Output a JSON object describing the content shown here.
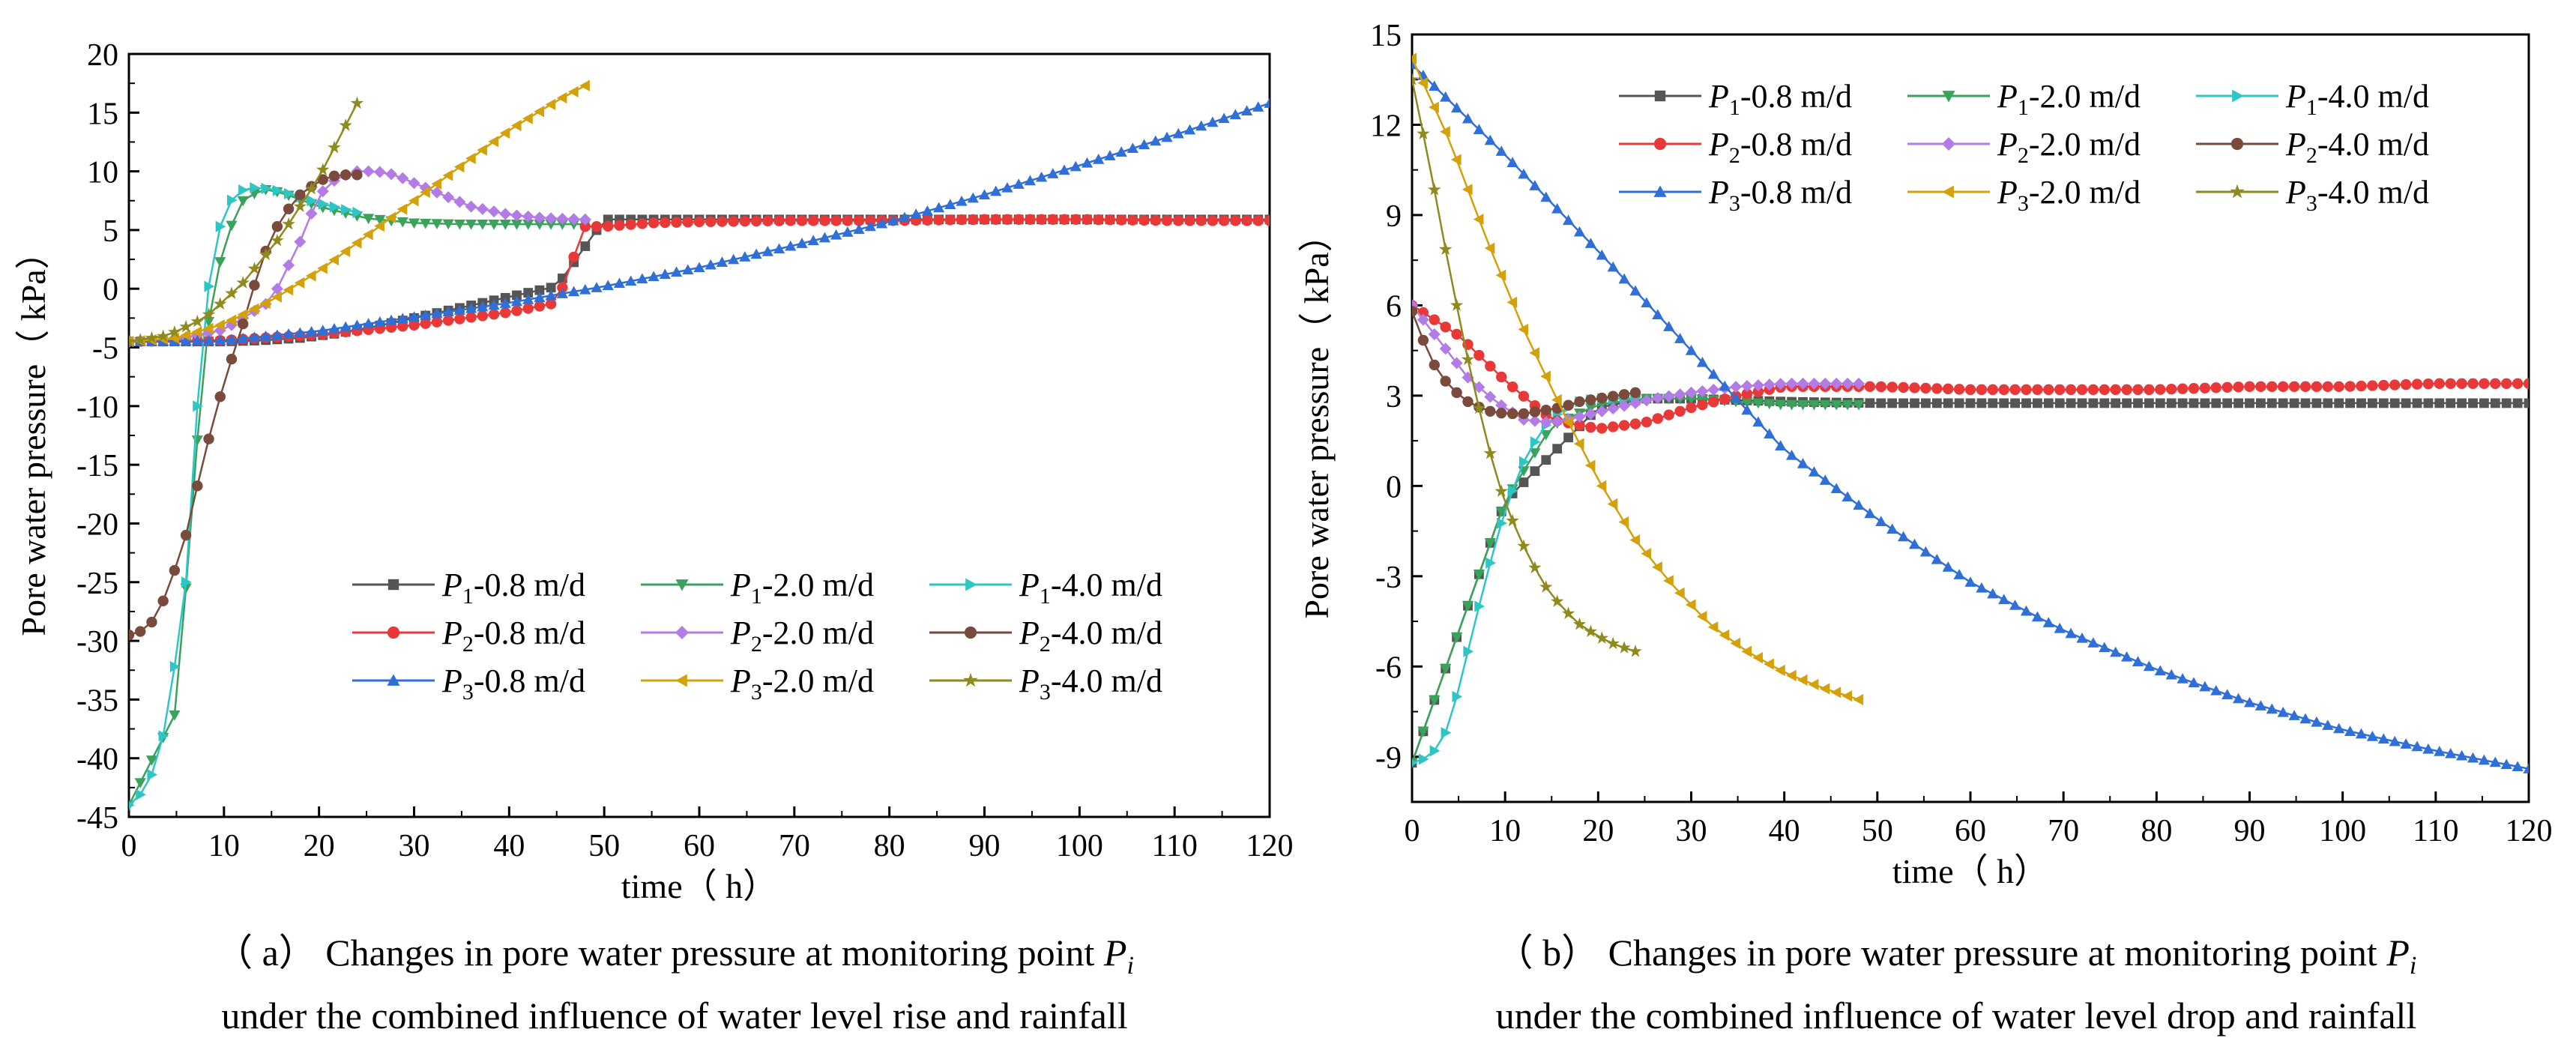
{
  "captions": {
    "a": {
      "prefix": "（ a） Changes in pore water pressure at monitoring point ",
      "symbol": "P",
      "subscript": "i",
      "line2": "under the combined influence of water level rise and rainfall"
    },
    "b": {
      "prefix": "（ b） Changes in pore water pressure at monitoring point ",
      "symbol": "P",
      "subscript": "i",
      "line2": "under the combined influence of water level  drop and rainfall"
    }
  },
  "legend_suffixes": {
    "0.8": "-0.8 m/d",
    "2.0": "-2.0 m/d",
    "4.0": "-4.0 m/d"
  },
  "series_style": [
    {
      "key": "P1-0.8",
      "point": "P",
      "sub": "1",
      "rate": "0.8",
      "color": "#555555",
      "marker": "square"
    },
    {
      "key": "P1-2.0",
      "point": "P",
      "sub": "1",
      "rate": "2.0",
      "color": "#3aa25a",
      "marker": "tri-down"
    },
    {
      "key": "P1-4.0",
      "point": "P",
      "sub": "1",
      "rate": "4.0",
      "color": "#2ec5c5",
      "marker": "tri-right"
    },
    {
      "key": "P2-0.8",
      "point": "P",
      "sub": "2",
      "rate": "0.8",
      "color": "#e83838",
      "marker": "circle"
    },
    {
      "key": "P2-2.0",
      "point": "P",
      "sub": "2",
      "rate": "2.0",
      "color": "#b27be6",
      "marker": "diamond"
    },
    {
      "key": "P2-4.0",
      "point": "P",
      "sub": "2",
      "rate": "4.0",
      "color": "#7a4a3c",
      "marker": "circle"
    },
    {
      "key": "P3-0.8",
      "point": "P",
      "sub": "3",
      "rate": "0.8",
      "color": "#2f6fd6",
      "marker": "tri-up"
    },
    {
      "key": "P3-2.0",
      "point": "P",
      "sub": "3",
      "rate": "2.0",
      "color": "#d4a10a",
      "marker": "tri-left"
    },
    {
      "key": "P3-4.0",
      "point": "P",
      "sub": "3",
      "rate": "4.0",
      "color": "#8e8a1e",
      "marker": "star"
    }
  ],
  "chart_data": [
    {
      "id": "a",
      "type": "line",
      "xlabel": "time（ h）",
      "ylabel": "Pore water pressure（ kPa）",
      "xlim": [
        0,
        120
      ],
      "ylim": [
        -45,
        20
      ],
      "xticks": [
        0,
        10,
        20,
        30,
        40,
        50,
        60,
        70,
        80,
        90,
        100,
        110,
        120
      ],
      "yticks": [
        -45,
        -40,
        -35,
        -30,
        -25,
        -20,
        -15,
        -10,
        -5,
        0,
        5,
        10,
        15,
        20
      ],
      "legend_position": "lower-right",
      "series": [
        {
          "key": "P1-0.8",
          "x": [
            0,
            5,
            10,
            14,
            18,
            22,
            26,
            30,
            35,
            40,
            45,
            50,
            60,
            70,
            80,
            90,
            100,
            110,
            120
          ],
          "y": [
            -4.5,
            -4.5,
            -4.5,
            -4.4,
            -4.2,
            -3.8,
            -3.2,
            -2.5,
            -1.6,
            -0.7,
            0.2,
            5.9,
            5.9,
            5.9,
            5.9,
            5.9,
            5.9,
            5.9,
            5.9
          ]
        },
        {
          "key": "P1-2.0",
          "x": [
            0,
            5,
            8,
            10,
            12,
            14,
            16,
            20,
            25,
            30,
            35,
            40,
            45,
            48
          ],
          "y": [
            -44.0,
            -36.0,
            -4.5,
            4.0,
            7.5,
            8.5,
            8.2,
            7.0,
            6.0,
            5.6,
            5.5,
            5.5,
            5.5,
            5.5
          ]
        },
        {
          "key": "P1-4.0",
          "x": [
            0,
            2,
            4,
            6,
            7,
            8,
            9,
            10,
            11,
            12,
            13,
            14,
            16,
            18,
            20,
            22,
            24
          ],
          "y": [
            -44.0,
            -42.5,
            -37.0,
            -25.0,
            -12.0,
            -2.0,
            3.5,
            6.5,
            7.8,
            8.4,
            8.6,
            8.6,
            8.3,
            7.8,
            7.3,
            6.9,
            6.5
          ]
        },
        {
          "key": "P2-0.8",
          "x": [
            0,
            10,
            20,
            30,
            40,
            45,
            48,
            50,
            55,
            60,
            70,
            80,
            90,
            100,
            110,
            120
          ],
          "y": [
            -4.5,
            -4.4,
            -3.9,
            -3.1,
            -2.0,
            -1.2,
            5.3,
            5.3,
            5.6,
            5.7,
            5.8,
            5.8,
            5.9,
            5.9,
            5.8,
            5.8
          ]
        },
        {
          "key": "P2-2.0",
          "x": [
            0,
            5,
            10,
            15,
            18,
            20,
            22,
            24,
            26,
            28,
            30,
            33,
            36,
            40,
            44,
            48
          ],
          "y": [
            -4.5,
            -4.3,
            -3.5,
            -1.0,
            4.0,
            8.0,
            9.5,
            10.0,
            10.0,
            9.7,
            9.0,
            8.0,
            7.0,
            6.3,
            6.0,
            5.9
          ]
        },
        {
          "key": "P2-4.0",
          "x": [
            0,
            2,
            4,
            6,
            8,
            10,
            12,
            14,
            16,
            18,
            20,
            22,
            24
          ],
          "y": [
            -29.5,
            -29.0,
            -26.0,
            -21.0,
            -14.0,
            -8.0,
            -3.0,
            2.5,
            6.0,
            8.0,
            9.2,
            9.7,
            9.7
          ]
        },
        {
          "key": "P3-0.8",
          "x": [
            0,
            10,
            20,
            30,
            40,
            50,
            60,
            70,
            80,
            90,
            100,
            110,
            120
          ],
          "y": [
            -4.5,
            -4.4,
            -3.6,
            -2.4,
            -1.2,
            0.2,
            1.8,
            3.7,
            5.7,
            8.0,
            10.5,
            13.1,
            15.8
          ]
        },
        {
          "key": "P3-2.0",
          "x": [
            0,
            5,
            10,
            15,
            20,
            25,
            30,
            35,
            40,
            45,
            48
          ],
          "y": [
            -4.5,
            -4.2,
            -3.0,
            -1.0,
            1.5,
            4.5,
            7.5,
            10.5,
            13.5,
            16.0,
            17.3
          ]
        },
        {
          "key": "P3-4.0",
          "x": [
            0,
            4,
            8,
            12,
            16,
            20,
            24
          ],
          "y": [
            -4.5,
            -4.0,
            -2.5,
            0.5,
            4.5,
            9.5,
            15.8
          ]
        }
      ]
    },
    {
      "id": "b",
      "type": "line",
      "xlabel": "time（ h）",
      "ylabel": "Pore water pressure（ kPa）",
      "xlim": [
        0,
        120
      ],
      "ylim": [
        -10.5,
        15
      ],
      "xticks": [
        0,
        10,
        20,
        30,
        40,
        50,
        60,
        70,
        80,
        90,
        100,
        110,
        120
      ],
      "yticks": [
        -9,
        -6,
        -3,
        0,
        3,
        6,
        9,
        12,
        15
      ],
      "legend_position": "top-right",
      "series": [
        {
          "key": "P1-0.8",
          "x": [
            0,
            10,
            20,
            25,
            30,
            40,
            50,
            60,
            70,
            80,
            90,
            100,
            110,
            120
          ],
          "y": [
            -9.2,
            -0.5,
            2.6,
            2.9,
            2.9,
            2.8,
            2.75,
            2.75,
            2.75,
            2.75,
            2.75,
            2.75,
            2.75,
            2.75
          ]
        },
        {
          "key": "P1-2.0",
          "x": [
            0,
            10,
            15,
            20,
            25,
            30,
            35,
            40,
            45,
            48
          ],
          "y": [
            -9.2,
            -0.5,
            2.0,
            2.7,
            2.9,
            2.9,
            2.8,
            2.7,
            2.7,
            2.7
          ]
        },
        {
          "key": "P1-4.0",
          "x": [
            0,
            2,
            4,
            6,
            8,
            10,
            12,
            14,
            16,
            18,
            20,
            22,
            24
          ],
          "y": [
            -9.2,
            -9.0,
            -8.0,
            -5.5,
            -3.0,
            -0.8,
            0.8,
            1.9,
            2.5,
            2.8,
            2.9,
            2.9,
            2.9
          ]
        },
        {
          "key": "P2-0.8",
          "x": [
            0,
            5,
            10,
            15,
            20,
            25,
            30,
            35,
            40,
            50,
            60,
            70,
            80,
            90,
            100,
            110,
            120
          ],
          "y": [
            6.0,
            5.0,
            3.5,
            2.2,
            1.9,
            2.1,
            2.6,
            3.0,
            3.3,
            3.3,
            3.2,
            3.2,
            3.2,
            3.3,
            3.3,
            3.4,
            3.4
          ]
        },
        {
          "key": "P2-2.0",
          "x": [
            0,
            3,
            6,
            9,
            12,
            15,
            18,
            22,
            26,
            30,
            35,
            40,
            45,
            48
          ],
          "y": [
            6.0,
            4.8,
            3.6,
            2.8,
            2.2,
            2.1,
            2.3,
            2.6,
            2.9,
            3.1,
            3.3,
            3.4,
            3.4,
            3.4
          ]
        },
        {
          "key": "P2-4.0",
          "x": [
            0,
            2,
            4,
            6,
            8,
            10,
            12,
            14,
            16,
            18,
            20,
            22,
            24
          ],
          "y": [
            5.8,
            4.2,
            3.3,
            2.8,
            2.5,
            2.4,
            2.4,
            2.5,
            2.6,
            2.8,
            2.9,
            3.0,
            3.1
          ]
        },
        {
          "key": "P3-0.8",
          "x": [
            0,
            10,
            20,
            30,
            40,
            50,
            60,
            70,
            80,
            90,
            100,
            110,
            120
          ],
          "y": [
            14.0,
            11.0,
            7.8,
            4.5,
            1.2,
            -1.1,
            -3.2,
            -4.8,
            -6.1,
            -7.2,
            -8.1,
            -8.8,
            -9.4
          ]
        },
        {
          "key": "P3-2.0",
          "x": [
            0,
            4,
            8,
            12,
            16,
            20,
            24,
            28,
            32,
            36,
            40,
            44,
            48
          ],
          "y": [
            14.2,
            11.5,
            8.2,
            5.2,
            2.6,
            0.2,
            -1.8,
            -3.3,
            -4.6,
            -5.5,
            -6.2,
            -6.7,
            -7.1
          ]
        },
        {
          "key": "P3-4.0",
          "x": [
            0,
            2,
            4,
            6,
            8,
            10,
            12,
            14,
            16,
            18,
            20,
            22,
            24
          ],
          "y": [
            13.5,
            10.5,
            7.2,
            4.2,
            1.5,
            -0.6,
            -2.0,
            -3.2,
            -4.0,
            -4.6,
            -5.0,
            -5.3,
            -5.5
          ]
        }
      ]
    }
  ]
}
